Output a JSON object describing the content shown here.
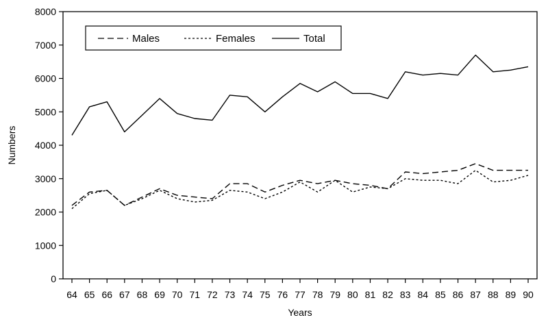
{
  "chart_data": {
    "type": "line",
    "title": "",
    "xlabel": "Years",
    "ylabel": "Numbers",
    "ylim": [
      0,
      8000
    ],
    "yticks": [
      0,
      1000,
      2000,
      3000,
      4000,
      5000,
      6000,
      7000,
      8000
    ],
    "ytick_labels": [
      "0",
      "1000",
      "2000",
      "3000",
      "4000",
      "5000",
      "6000",
      "7000",
      "8000"
    ],
    "categories": [
      "64",
      "65",
      "66",
      "67",
      "68",
      "69",
      "70",
      "71",
      "72",
      "73",
      "74",
      "75",
      "76",
      "77",
      "78",
      "79",
      "80",
      "81",
      "82",
      "83",
      "84",
      "85",
      "86",
      "87",
      "88",
      "89",
      "90"
    ],
    "grid": false,
    "legend_position": "top-left",
    "series": [
      {
        "name": "Males",
        "style": "dashed",
        "color": "#000000",
        "values": [
          2200,
          2600,
          2650,
          2200,
          2450,
          2700,
          2500,
          2450,
          2400,
          2850,
          2850,
          2600,
          2800,
          2950,
          2850,
          2950,
          2850,
          2800,
          2700,
          3200,
          3150,
          3200,
          3250,
          3450,
          3250,
          3250,
          3250
        ]
      },
      {
        "name": "Females",
        "style": "dotted",
        "color": "#000000",
        "values": [
          2100,
          2550,
          2650,
          2200,
          2400,
          2650,
          2400,
          2300,
          2350,
          2650,
          2600,
          2400,
          2600,
          2900,
          2600,
          2950,
          2600,
          2750,
          2700,
          3000,
          2950,
          2950,
          2850,
          3250,
          2900,
          2950,
          3100
        ]
      },
      {
        "name": "Total",
        "style": "solid",
        "color": "#000000",
        "values": [
          4300,
          5150,
          5300,
          4400,
          4900,
          5400,
          4950,
          4800,
          4750,
          5500,
          5450,
          5000,
          5450,
          5850,
          5600,
          5900,
          5550,
          5550,
          5400,
          6200,
          6100,
          6150,
          6100,
          6700,
          6200,
          6250,
          6350
        ]
      }
    ]
  }
}
